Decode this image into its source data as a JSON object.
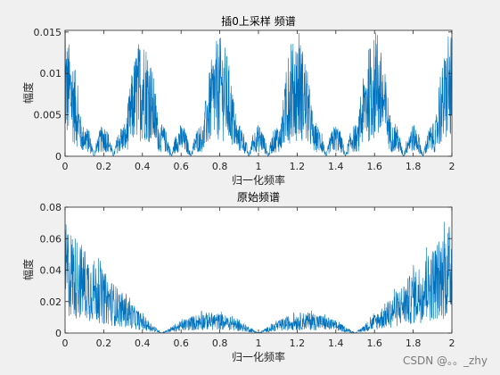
{
  "watermark": "CSDN @。。_zhy",
  "colors": {
    "line": "#0072BD",
    "axes_bg": "#ffffff",
    "figure_bg": "#f0f0f0",
    "axis": "#262626"
  },
  "chart_data": [
    {
      "type": "line",
      "title": "插0上采样 频谱",
      "xlabel": "归一化频率",
      "ylabel": "幅度",
      "xlim": [
        0,
        2
      ],
      "ylim": [
        0,
        0.0152
      ],
      "xticks": [
        0,
        0.2,
        0.4,
        0.6,
        0.8,
        1,
        1.2,
        1.4,
        1.6,
        1.8,
        2
      ],
      "xtick_labels": [
        "0",
        "0.2",
        "0.4",
        "0.6",
        "0.8",
        "1",
        "1.2",
        "1.4",
        "1.6",
        "1.8",
        "2"
      ],
      "yticks": [
        0,
        0.005,
        0.01,
        0.015
      ],
      "ytick_labels": [
        "0",
        "0.005",
        "0.01",
        "0.015"
      ],
      "grid": false,
      "envelope": {
        "description": "spectral images repeating every 0.4 in normalized frequency",
        "large_peak_centers": [
          0.0,
          0.4,
          0.8,
          1.2,
          1.6,
          2.0
        ],
        "large_peak_half_width": 0.1,
        "large_peak_amplitude": 0.012,
        "small_peak_centers": [
          0.1,
          0.2,
          0.3,
          0.5,
          0.6,
          0.7,
          0.9,
          1.0,
          1.1,
          1.3,
          1.4,
          1.5,
          1.7,
          1.8,
          1.9
        ],
        "small_peak_amplitude": 0.0032,
        "max_value": 0.0152
      }
    },
    {
      "type": "line",
      "title": "原始频谱",
      "xlabel": "归一化频率",
      "ylabel": "幅度",
      "xlim": [
        0,
        2
      ],
      "ylim": [
        0,
        0.08
      ],
      "xticks": [
        0,
        0.2,
        0.4,
        0.6,
        0.8,
        1,
        1.2,
        1.4,
        1.6,
        1.8,
        2
      ],
      "xtick_labels": [
        "0",
        "0.2",
        "0.4",
        "0.6",
        "0.8",
        "1",
        "1.2",
        "1.4",
        "1.6",
        "1.8",
        "2"
      ],
      "yticks": [
        0,
        0.02,
        0.04,
        0.06,
        0.08
      ],
      "ytick_labels": [
        "0",
        "0.02",
        "0.04",
        "0.06",
        "0.08"
      ],
      "grid": false,
      "envelope": {
        "description": "large lobes near 0 and 2, zeros at 0.5, 1 and 1.5, small lobes around 0.75 and 1.25",
        "zeros": [
          0.5,
          1.0,
          1.5
        ],
        "lobe_peaks": [
          {
            "x": 0.0,
            "y": 0.065
          },
          {
            "x": 0.75,
            "y": 0.012
          },
          {
            "x": 1.25,
            "y": 0.012
          },
          {
            "x": 2.0,
            "y": 0.065
          }
        ],
        "max_value": 0.077
      }
    }
  ]
}
